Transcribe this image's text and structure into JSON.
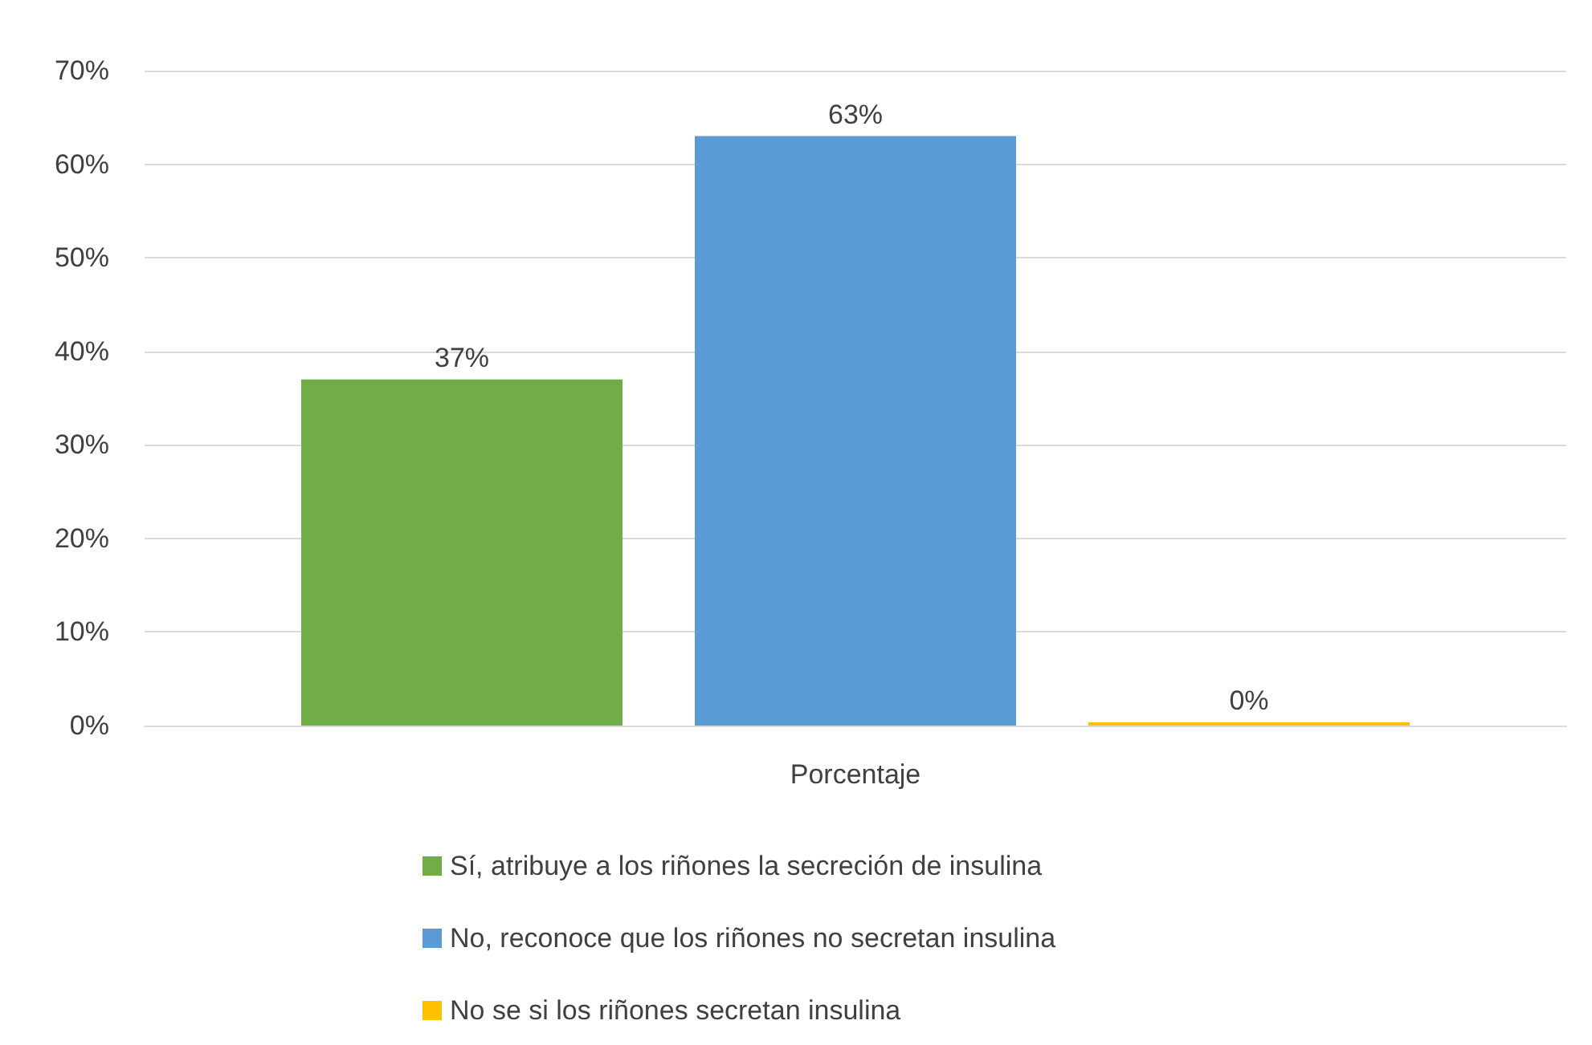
{
  "chart_data": {
    "type": "bar",
    "categories": [
      "Porcentaje"
    ],
    "series": [
      {
        "name": "Sí, atribuye a los riñones la secreción de insulina",
        "color": "#70ad47",
        "values": [
          37
        ],
        "value_labels": [
          "37%"
        ]
      },
      {
        "name": "No, reconoce que los riñones no secretan insulina",
        "color": "#5b9bd5",
        "values": [
          63
        ],
        "value_labels": [
          "63%"
        ]
      },
      {
        "name": "No se si los riñones secretan insulina",
        "color": "#ffc000",
        "values": [
          0
        ],
        "value_labels": [
          "0%"
        ]
      }
    ],
    "ylim": [
      0,
      70
    ],
    "yticks": [
      {
        "value": 0,
        "label": "0%"
      },
      {
        "value": 10,
        "label": "10%"
      },
      {
        "value": 20,
        "label": "20%"
      },
      {
        "value": 30,
        "label": "30%"
      },
      {
        "value": 40,
        "label": "40%"
      },
      {
        "value": 50,
        "label": "50%"
      },
      {
        "value": 60,
        "label": "60%"
      },
      {
        "value": 70,
        "label": "70%"
      }
    ],
    "grid": "y",
    "legend": "bottom"
  }
}
